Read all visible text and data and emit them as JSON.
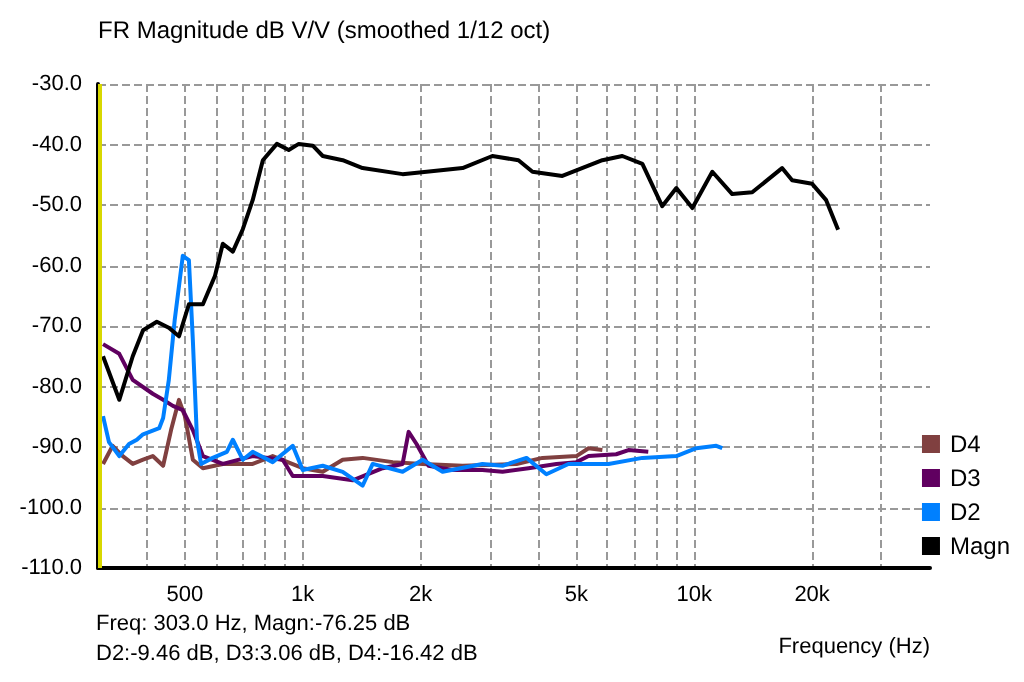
{
  "chart_data": {
    "type": "line",
    "title": "FR Magnitude dB V/V (smoothed 1/12 oct)",
    "xlabel": "Frequency (Hz)",
    "log": "x",
    "grid": true,
    "legend": "bottom right",
    "marker": "none",
    "line_style": "solid",
    "xlim": [
      300,
      40000
    ],
    "xticks": [
      {
        "value": 400,
        "label": null
      },
      {
        "value": 500,
        "label": "500"
      },
      {
        "value": 600,
        "label": null
      },
      {
        "value": 700,
        "label": null
      },
      {
        "value": 800,
        "label": null
      },
      {
        "value": 900,
        "label": null
      },
      {
        "value": 1000,
        "label": "1k"
      },
      {
        "value": 2000,
        "label": "2k"
      },
      {
        "value": 3000,
        "label": null
      },
      {
        "value": 4000,
        "label": null
      },
      {
        "value": 5000,
        "label": "5k"
      },
      {
        "value": 6000,
        "label": null
      },
      {
        "value": 7000,
        "label": null
      },
      {
        "value": 8000,
        "label": null
      },
      {
        "value": 9000,
        "label": null
      },
      {
        "value": 10000,
        "label": "10k"
      },
      {
        "value": 20000,
        "label": "20k"
      },
      {
        "value": 30000,
        "label": null
      }
    ],
    "ylim": [
      -110,
      -30
    ],
    "yticks": [
      {
        "value": -110,
        "label": "-110.0"
      },
      {
        "value": -100,
        "label": "-100.0"
      },
      {
        "value": -90,
        "label": "-90.0"
      },
      {
        "value": -80,
        "label": "-80.0"
      },
      {
        "value": -70,
        "label": "-70.0"
      },
      {
        "value": -60,
        "label": "-60.0"
      },
      {
        "value": -50,
        "label": "-50.0"
      },
      {
        "value": -40,
        "label": "-40.0"
      },
      {
        "value": -30,
        "label": "-30.0"
      }
    ],
    "ref_lines": [
      {
        "axis": "x",
        "value": 303,
        "color": "#d8d800"
      }
    ],
    "annotations": [
      "Freq: 303.0 Hz, Magn:-76.25 dB",
      "D2:-9.46 dB, D3:3.06 dB, D4:-16.42 dB"
    ],
    "series": [
      {
        "name": "D4",
        "color": "#804040",
        "x": [
          309,
          327,
          347,
          368,
          391,
          414,
          440,
          461,
          483,
          500,
          524,
          556,
          625,
          745,
          838,
          1000,
          1125,
          1265,
          1422,
          1698,
          2024,
          2560,
          3516,
          4096,
          5000,
          5370,
          5825
        ],
        "values": [
          -92.8,
          -89.8,
          -91.5,
          -92.8,
          -92.1,
          -91.5,
          -93.1,
          -87.2,
          -82.2,
          -84.9,
          -92.1,
          -93.5,
          -92.8,
          -92.8,
          -91.5,
          -93.5,
          -94.1,
          -92.1,
          -91.8,
          -92.5,
          -92.8,
          -93.1,
          -92.8,
          -91.8,
          -91.5,
          -90.2,
          -90.5
        ]
      },
      {
        "name": "D3",
        "color": "#600060",
        "x": [
          309,
          340,
          368,
          414,
          440,
          466,
          494,
          524,
          556,
          625,
          745,
          889,
          943,
          1125,
          1342,
          1600,
          1799,
          1864,
          1953,
          2096,
          2413,
          2877,
          3238,
          3773,
          4446,
          5000,
          5370,
          6320,
          6790,
          7630
        ],
        "values": [
          -73,
          -74.6,
          -78.9,
          -81.2,
          -82.2,
          -83.2,
          -83.9,
          -87.2,
          -91.5,
          -92.8,
          -91.5,
          -92.1,
          -94.8,
          -94.8,
          -95.5,
          -93.5,
          -92.8,
          -87.5,
          -89.5,
          -93.1,
          -93.8,
          -93.8,
          -94.1,
          -93.5,
          -92.8,
          -92.5,
          -91.5,
          -91.2,
          -90.5,
          -90.8
        ]
      },
      {
        "name": "D2",
        "color": "#0080ff",
        "x": [
          309,
          320,
          340,
          360,
          377,
          391,
          430,
          440,
          455,
          471,
          494,
          512,
          524,
          537,
          550,
          589,
          640,
          663,
          703,
          745,
          838,
          943,
          1000,
          1125,
          1265,
          1422,
          1509,
          1799,
          2024,
          2276,
          2877,
          3238,
          3728,
          4190,
          4770,
          6040,
          7370,
          9000,
          10120,
          11380,
          11790
        ],
        "values": [
          -84.9,
          -89.2,
          -91.5,
          -89.5,
          -88.8,
          -87.9,
          -86.9,
          -85.2,
          -78.9,
          -69,
          -58.4,
          -59.1,
          -72.3,
          -88.8,
          -92.8,
          -91.8,
          -90.8,
          -88.8,
          -92.1,
          -90.8,
          -92.5,
          -89.8,
          -93.8,
          -93.1,
          -94.1,
          -96.4,
          -92.8,
          -94.1,
          -92.1,
          -94.1,
          -92.8,
          -93.1,
          -91.8,
          -94.5,
          -92.8,
          -92.8,
          -91.8,
          -91.5,
          -90.2,
          -89.8,
          -90.2
        ]
      },
      {
        "name": "Magn",
        "color": "#000000",
        "x": [
          309,
          340,
          368,
          391,
          424,
          455,
          483,
          512,
          556,
          597,
          625,
          663,
          703,
          745,
          791,
          859,
          921,
          977,
          1061,
          1125,
          1265,
          1422,
          1799,
          2560,
          3050,
          3556,
          3862,
          4603,
          5825,
          6550,
          7370,
          8280,
          9000,
          9890,
          11120,
          12500,
          14060,
          16760,
          17780,
          20000,
          21720,
          23300
        ],
        "values": [
          -75,
          -82.2,
          -75,
          -70.7,
          -69.3,
          -70.3,
          -71.7,
          -66.4,
          -66.4,
          -61.7,
          -56.4,
          -57.7,
          -54,
          -49.2,
          -42.6,
          -39.9,
          -40.9,
          -39.9,
          -40.2,
          -41.9,
          -42.6,
          -43.9,
          -44.9,
          -43.9,
          -41.9,
          -42.6,
          -44.5,
          -45.2,
          -42.6,
          -41.9,
          -43.2,
          -50.2,
          -47.2,
          -50.5,
          -44.5,
          -48.2,
          -47.9,
          -43.9,
          -45.9,
          -46.5,
          -49.2,
          -54.1
        ]
      }
    ]
  }
}
